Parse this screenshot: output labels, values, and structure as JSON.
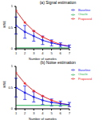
{
  "chart_data": [
    {
      "type": "line",
      "title": "(a) Signal estimation",
      "x_label": "Number of samples",
      "y_label": "MSE",
      "x": [
        1,
        2,
        3,
        4,
        5,
        6,
        7
      ],
      "xlim": [
        1,
        7
      ],
      "xticks": [
        1,
        2,
        3,
        4,
        5,
        6,
        7
      ],
      "ylim": [
        0,
        1
      ],
      "yticks": [
        0,
        0.5,
        1
      ],
      "legend": "upper right",
      "series": [
        {
          "name": "Proposed",
          "color": "#ff2020",
          "marker": "o",
          "values": [
            0.9,
            0.62,
            0.42,
            0.28,
            0.18,
            0.1,
            0.06
          ]
        },
        {
          "name": "Baseline",
          "color": "#2020ff",
          "marker": "o",
          "values": [
            0.55,
            0.4,
            0.3,
            0.2,
            0.14,
            0.09,
            0.06
          ],
          "error": [
            0.2,
            0.15,
            0.12,
            0.1,
            0.07,
            0.05,
            0.03
          ]
        },
        {
          "name": "Oracle",
          "color": "#20b050",
          "values": [
            0.02,
            0.02,
            0.02,
            0.02,
            0.02,
            0.02,
            0.02
          ]
        }
      ]
    },
    {
      "type": "line",
      "title": "(b) Noise estimation",
      "x_label": "Number of samples",
      "y_label": "MSE",
      "x": [
        1,
        2,
        3,
        4,
        5,
        6,
        7
      ],
      "xlim": [
        1,
        7
      ],
      "xticks": [
        1,
        2,
        3,
        4,
        5,
        6,
        7
      ],
      "ylim": [
        0,
        1
      ],
      "yticks": [
        0,
        0.5,
        1
      ],
      "legend": "upper right",
      "series": [
        {
          "name": "Proposed",
          "color": "#ff2020",
          "marker": "o",
          "values": [
            0.85,
            0.6,
            0.42,
            0.3,
            0.2,
            0.13,
            0.09
          ]
        },
        {
          "name": "Baseline",
          "color": "#2020ff",
          "marker": "o",
          "values": [
            0.5,
            0.38,
            0.28,
            0.2,
            0.15,
            0.12,
            0.1
          ],
          "error": [
            0.22,
            0.16,
            0.12,
            0.1,
            0.08,
            0.06,
            0.05
          ]
        },
        {
          "name": "Oracle",
          "color": "#20b050",
          "values": [
            0.08,
            0.08,
            0.08,
            0.08,
            0.08,
            0.08,
            0.08
          ]
        }
      ]
    }
  ]
}
